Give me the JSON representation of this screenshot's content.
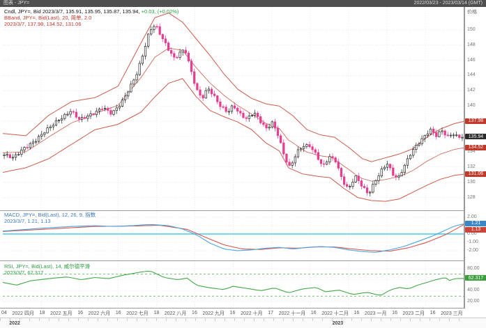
{
  "top_bar": {
    "left": "图表 - JPY=",
    "right": "2022/03/23 - 2023/03/14 (GMT)"
  },
  "legends": {
    "candle": {
      "text": "Cndl, JPY=, Bid   2023/3/7, 135.91, 135.95, 135.87, 135.94, ",
      "change": "+0.03, (+0.02%)"
    },
    "bband_line1": "BBand, JPY=, Bid(Last), 20, 简单, 2.0",
    "bband_line2": "2023/3/7, 137.98, 134.52, 131.06",
    "macd_line1": "MACD, JPY=, Bid(Last), 12, 26, 9, 指数",
    "macd_line2": "2023/3/7, 1.21, 1.13",
    "rsi_line1": "RSI, JPY=, Bid(Last), 14, 威尔德平滑",
    "rsi_line2": "2023/3/7, 62.317"
  },
  "axis": {
    "price_title": "价格",
    "price_ticks": [
      150,
      148,
      146,
      144,
      142,
      140,
      138,
      136,
      134,
      132,
      130,
      128
    ],
    "price_badges": [
      {
        "text": "137.98",
        "value": 137.98,
        "color": "#c0392b"
      },
      {
        "text": "135.94",
        "value": 135.94,
        "color": "#2b2b2b"
      },
      {
        "text": "134.52",
        "value": 134.52,
        "color": "#c0392b"
      },
      {
        "text": "131.06",
        "value": 131.06,
        "color": "#c0392b"
      }
    ],
    "macd_ticks": [
      "2.00",
      "1.00",
      "0.00",
      "-1.00",
      "-2.00"
    ],
    "macd_badges": [
      {
        "text": "1.21",
        "value": 1.21,
        "color": "#3a87c8"
      },
      {
        "text": "1.13",
        "value": 1.13,
        "color": "#cc4437"
      }
    ],
    "rsi_ticks": [
      "80.00",
      "60.00",
      "40.00",
      "20.00"
    ],
    "rsi_badge": {
      "text": "62.317",
      "value": 62.317,
      "color": "#3a9e3a"
    }
  },
  "x_axis": {
    "labels": [
      "04",
      "2022 四月",
      "18",
      "2022 五月",
      "16",
      "2022 六月",
      "16",
      "2022 七月",
      "18",
      "2022 八月",
      "16",
      "2022 九月",
      "16",
      "2022 十月",
      "17",
      "2022 十一月",
      "16",
      "2022 十二月",
      "16",
      "2023 一月",
      "16",
      "2023 二月",
      "16",
      "2023 三月"
    ],
    "years": [
      {
        "label": "2022",
        "pos": 0.02
      },
      {
        "label": "2023",
        "pos": 0.72
      }
    ]
  },
  "chart_data": {
    "type": "candlestick",
    "instrument": "JPY=",
    "title": "Cndl JPY= Bid with BBand(20,2), MACD(12,26,9), RSI(14)",
    "date_range": "2022/03/23 - 2023/03/14 (GMT)",
    "last_ohlc": {
      "date": "2023/3/7",
      "open": 135.91,
      "high": 135.95,
      "low": 135.87,
      "close": 135.94,
      "change": "+0.03",
      "change_pct": "+0.02%"
    },
    "price_ylim": [
      126.5,
      153
    ],
    "candle_count": 160,
    "close_keypoints": [
      [
        0,
        133.6
      ],
      [
        0.02,
        133.1
      ],
      [
        0.045,
        134.6
      ],
      [
        0.07,
        135.6
      ],
      [
        0.095,
        136.9
      ],
      [
        0.12,
        138.3
      ],
      [
        0.145,
        139.4
      ],
      [
        0.165,
        138.1
      ],
      [
        0.19,
        138.9
      ],
      [
        0.215,
        139.9
      ],
      [
        0.235,
        138.9
      ],
      [
        0.255,
        140.3
      ],
      [
        0.275,
        142.6
      ],
      [
        0.29,
        144.4
      ],
      [
        0.305,
        147.2
      ],
      [
        0.318,
        149.9
      ],
      [
        0.33,
        150.6
      ],
      [
        0.345,
        149.0
      ],
      [
        0.36,
        147.4
      ],
      [
        0.372,
        146.2
      ],
      [
        0.385,
        147.0
      ],
      [
        0.395,
        147.3
      ],
      [
        0.408,
        144.6
      ],
      [
        0.42,
        142.2
      ],
      [
        0.432,
        141.1
      ],
      [
        0.445,
        142.4
      ],
      [
        0.458,
        141.2
      ],
      [
        0.472,
        139.9
      ],
      [
        0.488,
        139.2
      ],
      [
        0.5,
        140.2
      ],
      [
        0.515,
        139.0
      ],
      [
        0.53,
        138.2
      ],
      [
        0.545,
        139.1
      ],
      [
        0.558,
        138.1
      ],
      [
        0.572,
        137.1
      ],
      [
        0.585,
        137.9
      ],
      [
        0.598,
        136.2
      ],
      [
        0.612,
        133.2
      ],
      [
        0.624,
        131.8
      ],
      [
        0.638,
        133.9
      ],
      [
        0.652,
        134.9
      ],
      [
        0.668,
        134.8
      ],
      [
        0.682,
        133.4
      ],
      [
        0.696,
        131.9
      ],
      [
        0.71,
        133.4
      ],
      [
        0.724,
        132.9
      ],
      [
        0.738,
        130.3
      ],
      [
        0.752,
        129.0
      ],
      [
        0.766,
        130.7
      ],
      [
        0.78,
        129.6
      ],
      [
        0.795,
        128.5
      ],
      [
        0.808,
        130.0
      ],
      [
        0.822,
        131.4
      ],
      [
        0.836,
        132.4
      ],
      [
        0.848,
        131.0
      ],
      [
        0.86,
        130.5
      ],
      [
        0.874,
        132.3
      ],
      [
        0.888,
        133.9
      ],
      [
        0.902,
        134.9
      ],
      [
        0.916,
        135.8
      ],
      [
        0.93,
        136.9
      ],
      [
        0.943,
        136.2
      ],
      [
        0.955,
        136.9
      ],
      [
        0.968,
        136.0
      ],
      [
        0.98,
        136.3
      ],
      [
        0.99,
        135.8
      ],
      [
        1,
        135.94
      ]
    ],
    "bband_upper": [
      [
        0,
        136.4
      ],
      [
        0.05,
        136.1
      ],
      [
        0.1,
        138.8
      ],
      [
        0.15,
        140.6
      ],
      [
        0.2,
        141.1
      ],
      [
        0.25,
        142.6
      ],
      [
        0.3,
        148.3
      ],
      [
        0.33,
        151.6
      ],
      [
        0.36,
        152.2
      ],
      [
        0.39,
        151.0
      ],
      [
        0.42,
        148.8
      ],
      [
        0.45,
        146.6
      ],
      [
        0.48,
        144.2
      ],
      [
        0.51,
        142.2
      ],
      [
        0.54,
        141.0
      ],
      [
        0.57,
        140.3
      ],
      [
        0.6,
        140.0
      ],
      [
        0.63,
        138.7
      ],
      [
        0.66,
        136.9
      ],
      [
        0.69,
        136.2
      ],
      [
        0.72,
        135.9
      ],
      [
        0.75,
        134.6
      ],
      [
        0.78,
        133.1
      ],
      [
        0.8,
        132.7
      ],
      [
        0.83,
        133.2
      ],
      [
        0.86,
        133.7
      ],
      [
        0.89,
        134.4
      ],
      [
        0.92,
        135.9
      ],
      [
        0.95,
        137.0
      ],
      [
        0.98,
        137.7
      ],
      [
        1,
        137.98
      ]
    ],
    "bband_lower": [
      [
        0,
        131.3
      ],
      [
        0.05,
        131.9
      ],
      [
        0.1,
        133.1
      ],
      [
        0.15,
        135.0
      ],
      [
        0.2,
        136.9
      ],
      [
        0.25,
        137.6
      ],
      [
        0.3,
        139.2
      ],
      [
        0.33,
        141.2
      ],
      [
        0.36,
        143.0
      ],
      [
        0.39,
        143.6
      ],
      [
        0.42,
        141.2
      ],
      [
        0.45,
        139.4
      ],
      [
        0.48,
        138.6
      ],
      [
        0.51,
        137.9
      ],
      [
        0.54,
        136.9
      ],
      [
        0.57,
        135.2
      ],
      [
        0.6,
        134.1
      ],
      [
        0.62,
        131.9
      ],
      [
        0.65,
        131.1
      ],
      [
        0.68,
        130.8
      ],
      [
        0.71,
        130.6
      ],
      [
        0.74,
        129.2
      ],
      [
        0.77,
        128.0
      ],
      [
        0.8,
        127.6
      ],
      [
        0.83,
        127.5
      ],
      [
        0.86,
        127.8
      ],
      [
        0.89,
        128.7
      ],
      [
        0.92,
        129.6
      ],
      [
        0.95,
        130.4
      ],
      [
        0.98,
        130.9
      ],
      [
        1,
        131.06
      ]
    ],
    "macd": {
      "ylim": [
        -3,
        2.5
      ],
      "last": {
        "macd": 1.21,
        "signal": 1.13
      },
      "line": [
        [
          0,
          0.35
        ],
        [
          0.05,
          0.55
        ],
        [
          0.1,
          0.75
        ],
        [
          0.15,
          0.9
        ],
        [
          0.2,
          1.0
        ],
        [
          0.24,
          0.9
        ],
        [
          0.28,
          1.0
        ],
        [
          0.32,
          1.15
        ],
        [
          0.36,
          1.0
        ],
        [
          0.39,
          0.6
        ],
        [
          0.42,
          -0.1
        ],
        [
          0.45,
          -1.1
        ],
        [
          0.48,
          -1.8
        ],
        [
          0.51,
          -2.0
        ],
        [
          0.54,
          -1.9
        ],
        [
          0.57,
          -1.7
        ],
        [
          0.6,
          -1.6
        ],
        [
          0.63,
          -1.8
        ],
        [
          0.66,
          -1.6
        ],
        [
          0.69,
          -1.5
        ],
        [
          0.72,
          -1.6
        ],
        [
          0.75,
          -1.9
        ],
        [
          0.78,
          -2.1
        ],
        [
          0.81,
          -2.2
        ],
        [
          0.84,
          -1.9
        ],
        [
          0.87,
          -1.5
        ],
        [
          0.9,
          -0.9
        ],
        [
          0.93,
          -0.3
        ],
        [
          0.96,
          0.45
        ],
        [
          0.98,
          0.95
        ],
        [
          1,
          1.21
        ]
      ],
      "signal": [
        [
          0,
          0.3
        ],
        [
          0.1,
          0.6
        ],
        [
          0.2,
          0.9
        ],
        [
          0.28,
          0.95
        ],
        [
          0.34,
          1.05
        ],
        [
          0.4,
          0.55
        ],
        [
          0.44,
          -0.4
        ],
        [
          0.48,
          -1.3
        ],
        [
          0.52,
          -1.8
        ],
        [
          0.56,
          -1.85
        ],
        [
          0.6,
          -1.65
        ],
        [
          0.64,
          -1.7
        ],
        [
          0.68,
          -1.55
        ],
        [
          0.72,
          -1.55
        ],
        [
          0.76,
          -1.8
        ],
        [
          0.8,
          -2.0
        ],
        [
          0.84,
          -2.05
        ],
        [
          0.88,
          -1.65
        ],
        [
          0.92,
          -1.0
        ],
        [
          0.96,
          -0.1
        ],
        [
          0.99,
          0.8
        ],
        [
          1,
          1.13
        ]
      ]
    },
    "rsi": {
      "ylim": [
        10,
        90
      ],
      "last": 62.317,
      "levels": [
        70,
        30
      ],
      "line": [
        [
          0,
          55
        ],
        [
          0.03,
          50
        ],
        [
          0.06,
          58
        ],
        [
          0.1,
          62
        ],
        [
          0.14,
          65
        ],
        [
          0.17,
          60
        ],
        [
          0.2,
          64
        ],
        [
          0.23,
          62
        ],
        [
          0.26,
          68
        ],
        [
          0.3,
          74
        ],
        [
          0.32,
          76
        ],
        [
          0.35,
          64
        ],
        [
          0.38,
          60
        ],
        [
          0.4,
          63
        ],
        [
          0.42,
          50
        ],
        [
          0.45,
          45
        ],
        [
          0.48,
          42
        ],
        [
          0.5,
          48
        ],
        [
          0.53,
          44
        ],
        [
          0.56,
          40
        ],
        [
          0.59,
          45
        ],
        [
          0.62,
          36
        ],
        [
          0.65,
          43
        ],
        [
          0.68,
          46
        ],
        [
          0.7,
          38
        ],
        [
          0.73,
          41
        ],
        [
          0.76,
          33
        ],
        [
          0.79,
          37
        ],
        [
          0.82,
          31
        ],
        [
          0.84,
          41
        ],
        [
          0.86,
          46
        ],
        [
          0.88,
          43
        ],
        [
          0.9,
          50
        ],
        [
          0.92,
          55
        ],
        [
          0.94,
          60
        ],
        [
          0.96,
          64
        ],
        [
          0.97,
          58
        ],
        [
          0.98,
          62
        ],
        [
          1,
          62.3
        ]
      ]
    },
    "colors": {
      "up_fill": "#ffffff",
      "up_stroke": "#222222",
      "down": "#e63f8f",
      "band": "#cd5b4b",
      "macd_line": "#4aa8e0",
      "macd_signal": "#d9534f",
      "macd_zero": "#45c8f0",
      "rsi_line": "#43a847",
      "grid": "#e9e9e9",
      "separator": "#9a9a9a"
    }
  }
}
